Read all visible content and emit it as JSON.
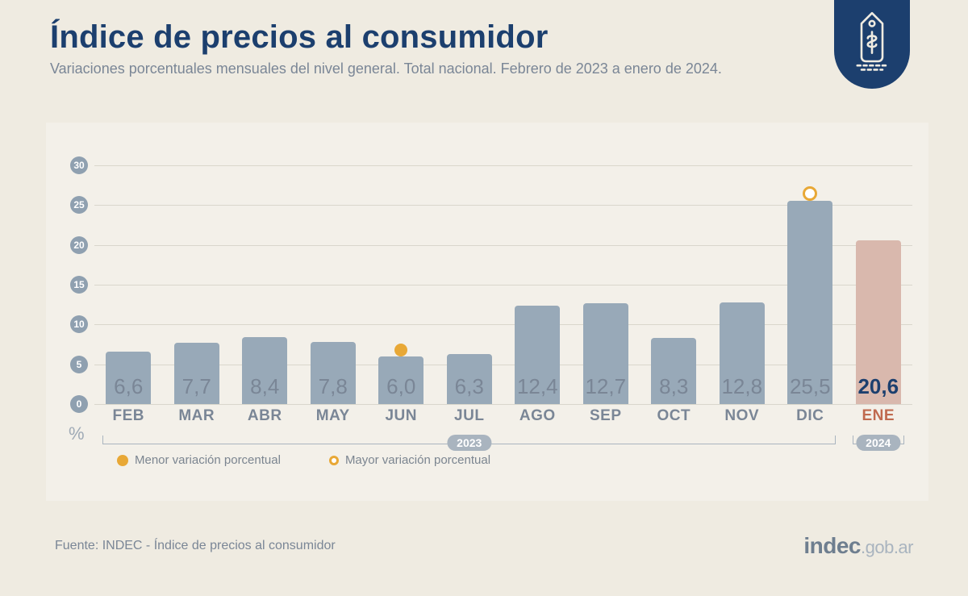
{
  "header": {
    "title": "Índice de precios al consumidor",
    "subtitle": "Variaciones porcentuales mensuales del nivel general. Total nacional. Febrero de 2023 a enero de 2024."
  },
  "chart": {
    "type": "bar",
    "ylim": [
      0,
      30
    ],
    "yticks": [
      0,
      5,
      10,
      15,
      20,
      25,
      30
    ],
    "ylabel": "%",
    "background_color": "#f3f0e9",
    "grid_color": "#d9d6cc",
    "bar_color_default": "#98a9b8",
    "bar_color_highlight": "#d9b8ad",
    "value_color_default": "#7a8696",
    "value_color_highlight": "#1c3f6e",
    "month_color_default": "#7a8696",
    "month_color_highlight": "#c06a4f",
    "title_color": "#1c3f6e",
    "subtitle_color": "#7a8696",
    "page_bg": "#efebe1",
    "value_fontsize": 26,
    "month_fontsize": 19,
    "bars": [
      {
        "month": "FEB",
        "value": 6.6,
        "display": "6,6",
        "year": "2023"
      },
      {
        "month": "MAR",
        "value": 7.7,
        "display": "7,7",
        "year": "2023"
      },
      {
        "month": "ABR",
        "value": 8.4,
        "display": "8,4",
        "year": "2023"
      },
      {
        "month": "MAY",
        "value": 7.8,
        "display": "7,8",
        "year": "2023"
      },
      {
        "month": "JUN",
        "value": 6.0,
        "display": "6,0",
        "year": "2023",
        "marker": "min"
      },
      {
        "month": "JUL",
        "value": 6.3,
        "display": "6,3",
        "year": "2023"
      },
      {
        "month": "AGO",
        "value": 12.4,
        "display": "12,4",
        "year": "2023"
      },
      {
        "month": "SEP",
        "value": 12.7,
        "display": "12,7",
        "year": "2023"
      },
      {
        "month": "OCT",
        "value": 8.3,
        "display": "8,3",
        "year": "2023"
      },
      {
        "month": "NOV",
        "value": 12.8,
        "display": "12,8",
        "year": "2023"
      },
      {
        "month": "DIC",
        "value": 25.5,
        "display": "25,5",
        "year": "2023",
        "marker": "max"
      },
      {
        "month": "ENE",
        "value": 20.6,
        "display": "20,6",
        "year": "2024",
        "highlight": true
      }
    ],
    "year_groups": [
      {
        "label": "2023",
        "start": 0,
        "end": 10
      },
      {
        "label": "2024",
        "start": 11,
        "end": 11
      }
    ],
    "marker_min_color": "#e8a836",
    "marker_max_color": "#e8a836",
    "marker_ring_color": "#e8a836"
  },
  "legend": {
    "min_label": "Menor variación porcentual",
    "max_label": "Mayor variación porcentual",
    "dot_color": "#e8a836",
    "ring_color": "#e8a836",
    "text_color": "#7b8590"
  },
  "footer": {
    "source": "Fuente: INDEC - Índice de precios al consumidor",
    "brand_bold": "indec",
    "brand_domain": ".gob.ar"
  }
}
